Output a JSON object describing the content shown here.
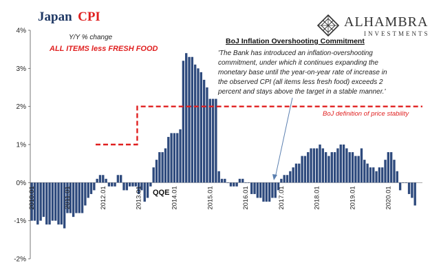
{
  "header": {
    "title_part1": "Japan",
    "title_part2": "CPI",
    "subtitle": "Y/Y % change",
    "series_label": "ALL ITEMS less FRESH FOOD"
  },
  "logo": {
    "name": "ALHAMBRA",
    "sub": "INVESTMENTS",
    "icon": "diamond-lattice-icon"
  },
  "annotation": {
    "title": "BoJ  Inflation Overshooting Commitment",
    "lines": [
      "'The Bank has introduced an inflation-overshooting",
      "commitment, under which it continues expanding the",
      "monetary base until the year-on-year rate of increase in",
      "the observed CPI  (all items less fresh food) exceeds 2",
      "percent and stays above the target in a stable manner.'"
    ]
  },
  "labels": {
    "qqe": "QQE",
    "reference": "BoJ definition of price stability"
  },
  "chart_data": {
    "type": "bar",
    "frequency": "monthly",
    "x_start": "2010-01",
    "x_end": "2020-12",
    "ylim": [
      -2,
      4
    ],
    "y_ticks": [
      "-2%",
      "-1%",
      "0%",
      "1%",
      "2%",
      "3%",
      "4%"
    ],
    "x_tick_labels": [
      "2010.01",
      "2011.01",
      "2012.01",
      "2013.01",
      "2014.01",
      "2015.01",
      "2016.01",
      "2017.01",
      "2018.01",
      "2019.01",
      "2020.01"
    ],
    "bar_color": "#2e4a7d",
    "values": [
      -1.0,
      -1.0,
      -1.1,
      -1.0,
      -0.9,
      -1.1,
      -1.1,
      -1.0,
      -1.0,
      -1.1,
      -1.1,
      -1.2,
      -0.8,
      -0.8,
      -0.9,
      -0.8,
      -0.8,
      -0.8,
      -0.6,
      -0.4,
      -0.3,
      -0.2,
      0.1,
      0.2,
      0.2,
      0.1,
      -0.1,
      -0.1,
      -0.1,
      0.2,
      0.2,
      -0.2,
      -0.2,
      -0.1,
      -0.1,
      -0.1,
      -0.3,
      -0.2,
      -0.5,
      -0.4,
      -0.1,
      0.4,
      0.6,
      0.8,
      0.8,
      0.9,
      1.2,
      1.3,
      1.3,
      1.3,
      1.4,
      3.2,
      3.4,
      3.3,
      3.3,
      3.1,
      3.0,
      2.9,
      2.7,
      2.5,
      2.2,
      2.2,
      2.2,
      0.3,
      0.1,
      0.1,
      0.0,
      -0.1,
      -0.1,
      -0.1,
      0.1,
      0.1,
      0.0,
      0.0,
      -0.3,
      -0.3,
      -0.4,
      -0.4,
      -0.5,
      -0.5,
      -0.5,
      -0.4,
      -0.4,
      -0.2,
      0.1,
      0.2,
      0.2,
      0.3,
      0.4,
      0.5,
      0.5,
      0.7,
      0.7,
      0.8,
      0.9,
      0.9,
      0.9,
      1.0,
      0.9,
      0.8,
      0.7,
      0.8,
      0.8,
      0.9,
      1.0,
      1.0,
      0.9,
      0.8,
      0.8,
      0.7,
      0.7,
      0.9,
      0.6,
      0.5,
      0.4,
      0.4,
      0.3,
      0.4,
      0.4,
      0.6,
      0.8,
      0.8,
      0.6,
      0.3,
      -0.2,
      0.0,
      0.0,
      -0.3,
      -0.4,
      -0.6
    ],
    "reference_lines": [
      {
        "name": "BoJ definition of price stability",
        "color": "#e02020",
        "style": "dashed",
        "segments": [
          {
            "x0": "2011-11",
            "x1": "2012-12",
            "y": 1.0
          },
          {
            "x0": "2013-01",
            "x1": "2020-12",
            "y": 2.0
          }
        ]
      }
    ],
    "grid": false
  }
}
